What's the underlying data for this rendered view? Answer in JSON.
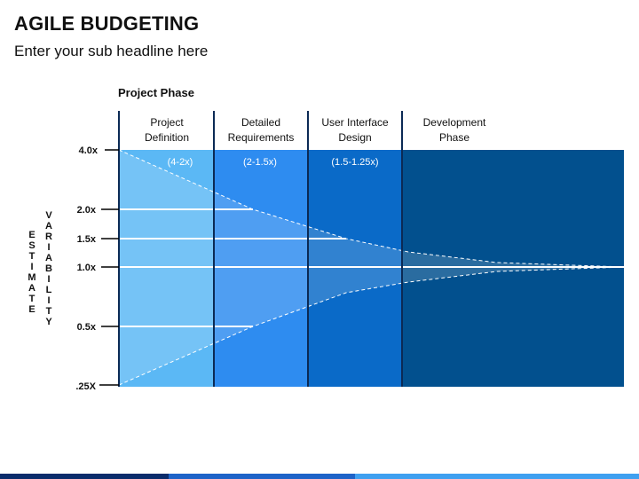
{
  "header": {
    "title": "AGILE BUDGETING",
    "subtitle": "Enter your sub headline here"
  },
  "diagram": {
    "section_label": "Project Phase",
    "y_axis_label_1": "ESTIMATE",
    "y_axis_label_2": "VARIABILITY",
    "phases": [
      {
        "label_line1": "Project",
        "label_line2": "Definition",
        "range": "(4-2x)",
        "color": "#5BB8F5"
      },
      {
        "label_line1": "Detailed",
        "label_line2": "Requirements",
        "range": "(2-1.5x)",
        "color": "#2E8CF0"
      },
      {
        "label_line1": "User Interface",
        "label_line2": "Design",
        "range": "(1.5-1.25x)",
        "color": "#0A6AC8"
      },
      {
        "label_line1": "Development",
        "label_line2": "Phase",
        "range": "",
        "color": "#02508E"
      }
    ],
    "y_ticks": [
      {
        "label": "4.0x",
        "value": 4.0
      },
      {
        "label": "2.0x",
        "value": 2.0
      },
      {
        "label": "1.5x",
        "value": 1.5
      },
      {
        "label": "1.0x",
        "value": 1.0
      },
      {
        "label": "0.5x",
        "value": 0.5
      },
      {
        "label": ".25X",
        "value": 0.25
      }
    ],
    "divider_color": "#0B2A55",
    "bottom_bar_colors": [
      "#0A2C6B",
      "#1E63C8",
      "#3FA0F0"
    ]
  }
}
